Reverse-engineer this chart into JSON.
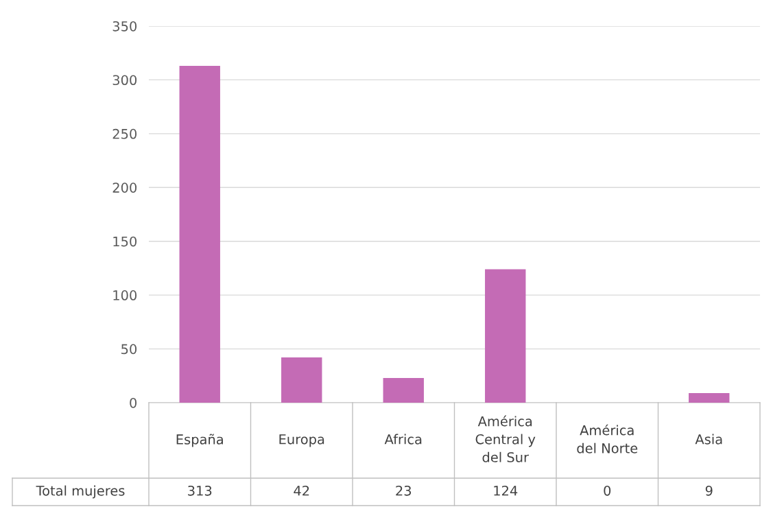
{
  "chart_data": {
    "type": "bar",
    "categories": [
      "España",
      "Europa",
      "Africa",
      "América Central y del Sur",
      "América del Norte",
      "Asia"
    ],
    "series": [
      {
        "name": "Total mujeres",
        "color": "#c46bb5",
        "values": [
          313,
          42,
          23,
          124,
          0,
          9
        ]
      }
    ],
    "ylim": [
      0,
      350
    ],
    "yticks": [
      0,
      50,
      100,
      150,
      200,
      250,
      300,
      350
    ],
    "grid": "y",
    "legend": false,
    "data_labels": true
  }
}
